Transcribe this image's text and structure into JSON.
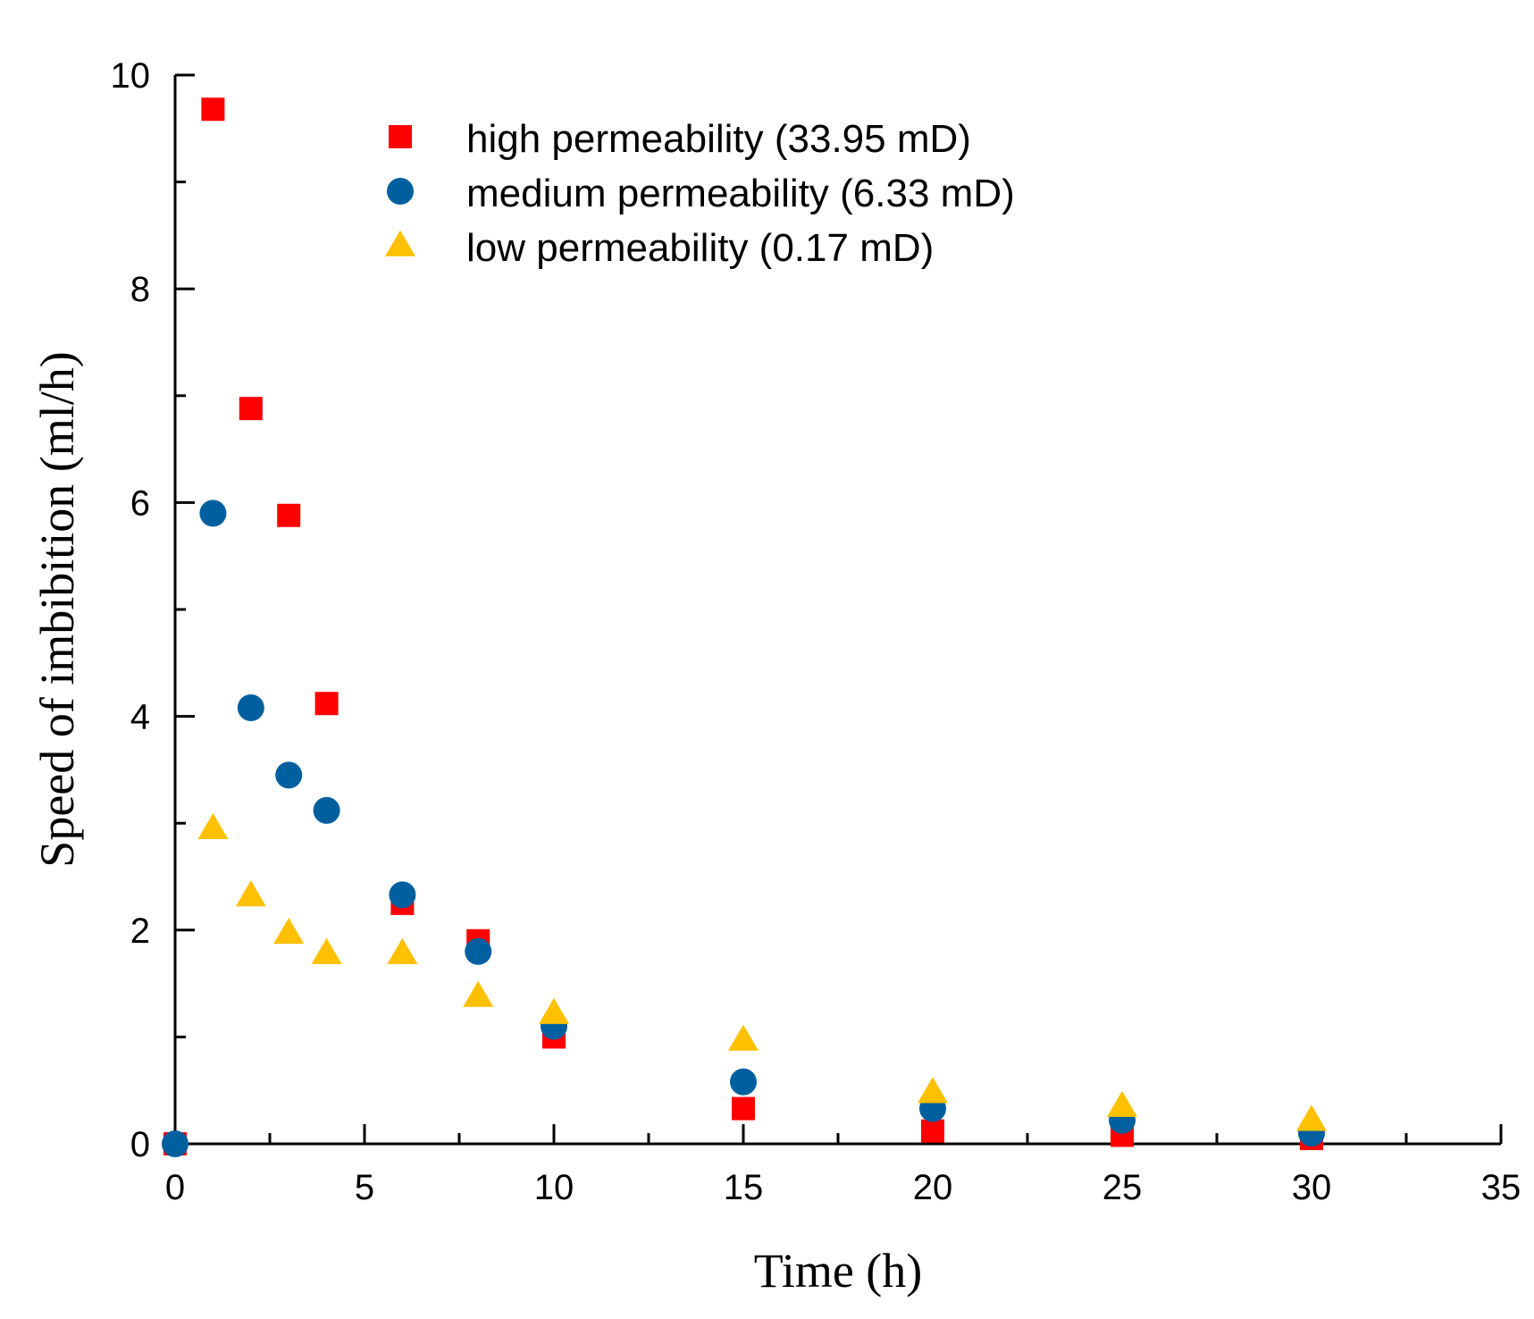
{
  "chart_data": {
    "type": "scatter",
    "title": "",
    "xlabel": "Time (h)",
    "ylabel": "Speed of imbibition (ml/h)",
    "xlim": [
      0,
      35
    ],
    "ylim": [
      0,
      10
    ],
    "x_major_ticks": [
      0,
      5,
      10,
      15,
      20,
      25,
      30,
      35
    ],
    "x_minor_ticks": [
      2.5,
      7.5,
      12.5,
      17.5,
      22.5,
      27.5,
      32.5
    ],
    "y_major_ticks": [
      0,
      2,
      4,
      6,
      8,
      10
    ],
    "y_minor_ticks": [
      1,
      3,
      5,
      7,
      9
    ],
    "legend_position": "top-center",
    "series": [
      {
        "name": "high permeability (33.95 mD)",
        "marker": "square",
        "color": "#ff0000",
        "points": [
          [
            0,
            0
          ],
          [
            1,
            9.68
          ],
          [
            2,
            6.88
          ],
          [
            3,
            5.88
          ],
          [
            4,
            4.12
          ],
          [
            6,
            2.25
          ],
          [
            8,
            1.9
          ],
          [
            10,
            1.0
          ],
          [
            15,
            0.33
          ],
          [
            20,
            0.12
          ],
          [
            25,
            0.08
          ],
          [
            30,
            0.05
          ]
        ]
      },
      {
        "name": "medium permeability (6.33 mD)",
        "marker": "circle",
        "color": "#00609f",
        "points": [
          [
            0,
            0
          ],
          [
            1,
            5.9
          ],
          [
            2,
            4.08
          ],
          [
            3,
            3.45
          ],
          [
            4,
            3.12
          ],
          [
            6,
            2.33
          ],
          [
            8,
            1.8
          ],
          [
            10,
            1.1
          ],
          [
            15,
            0.58
          ],
          [
            20,
            0.33
          ],
          [
            25,
            0.22
          ],
          [
            30,
            0.1
          ]
        ]
      },
      {
        "name": "low permeability (0.17 mD)",
        "marker": "triangle",
        "color": "#ffc000",
        "points": [
          [
            1,
            2.95
          ],
          [
            2,
            2.32
          ],
          [
            3,
            1.97
          ],
          [
            4,
            1.78
          ],
          [
            6,
            1.78
          ],
          [
            8,
            1.38
          ],
          [
            10,
            1.22
          ],
          [
            15,
            0.97
          ],
          [
            20,
            0.48
          ],
          [
            25,
            0.35
          ],
          [
            30,
            0.22
          ]
        ]
      }
    ]
  }
}
